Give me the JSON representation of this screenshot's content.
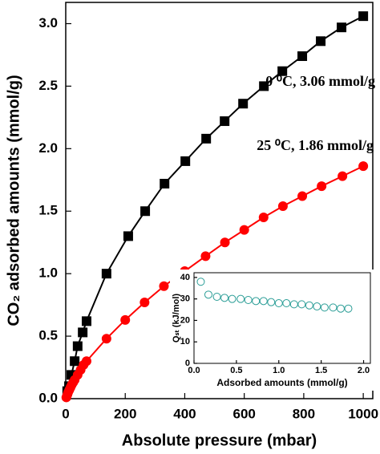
{
  "chart_data": [
    {
      "type": "line",
      "xlabel": "Absolute pressure (mbar)",
      "ylabel": "CO₂ adsorbed amounts (mmol/g)",
      "annotations": [
        "0 ⁰C, 3.06 mmol/g",
        "25 ⁰C, 1.86 mmol/g"
      ],
      "xlim": [
        0,
        1032
      ],
      "ylim": [
        0,
        3.17
      ],
      "xticks": [
        0,
        200,
        400,
        600,
        800,
        1000
      ],
      "yticks": [
        {
          "value": 0,
          "label": "0.0"
        },
        0.5,
        {
          "value": 1,
          "label": "1.0"
        },
        1.5,
        {
          "value": 2,
          "label": "2.0"
        },
        2.5,
        {
          "value": 3,
          "label": "3.0"
        }
      ],
      "series": [
        {
          "color": "#000000",
          "marker": "square",
          "x": [
            5,
            11,
            19,
            30,
            40,
            57,
            70,
            137,
            210,
            267,
            332,
            402,
            472,
            534,
            596,
            666,
            728,
            795,
            857,
            927,
            1000
          ],
          "values": [
            0.06,
            0.1,
            0.19,
            0.3,
            0.42,
            0.53,
            0.62,
            1.0,
            1.3,
            1.5,
            1.72,
            1.9,
            2.08,
            2.22,
            2.36,
            2.5,
            2.62,
            2.74,
            2.86,
            2.97,
            3.06
          ]
        },
        {
          "color": "#ff0000",
          "marker": "circle",
          "x": [
            2,
            5,
            8,
            12,
            16,
            20,
            25,
            30,
            40,
            50,
            60,
            70,
            137,
            200,
            265,
            330,
            400,
            470,
            535,
            600,
            665,
            730,
            795,
            860,
            930,
            1000
          ],
          "values": [
            0.01,
            0.03,
            0.05,
            0.07,
            0.09,
            0.11,
            0.13,
            0.15,
            0.19,
            0.23,
            0.27,
            0.3,
            0.48,
            0.63,
            0.77,
            0.9,
            1.02,
            1.14,
            1.25,
            1.35,
            1.45,
            1.54,
            1.62,
            1.7,
            1.78,
            1.86
          ]
        }
      ]
    },
    {
      "type": "scatter",
      "xlabel": "Adsorbed amounts (mmol/g)",
      "ylabel": "Qₛₜ (kJ/mol)",
      "xlim": [
        0,
        2.08
      ],
      "ylim": [
        0,
        42.2
      ],
      "xticks": [
        {
          "value": 0,
          "label": "0.0"
        },
        0.5,
        {
          "value": 1,
          "label": "1.0"
        },
        1.5,
        {
          "value": 2,
          "label": "2.0"
        }
      ],
      "yticks": [
        0,
        10,
        20,
        30,
        40
      ],
      "series": [
        {
          "color": "#2a9d96",
          "marker": "open-circle",
          "x": [
            0.08,
            0.17,
            0.27,
            0.36,
            0.45,
            0.55,
            0.64,
            0.73,
            0.82,
            0.91,
            1.0,
            1.09,
            1.18,
            1.27,
            1.36,
            1.45,
            1.54,
            1.64,
            1.73,
            1.82
          ],
          "values": [
            38,
            32,
            31,
            30.5,
            30,
            30,
            29.5,
            29,
            29,
            28.5,
            28,
            28,
            27.5,
            27.5,
            27,
            26.5,
            26,
            26,
            25.5,
            25.5
          ]
        }
      ]
    }
  ]
}
